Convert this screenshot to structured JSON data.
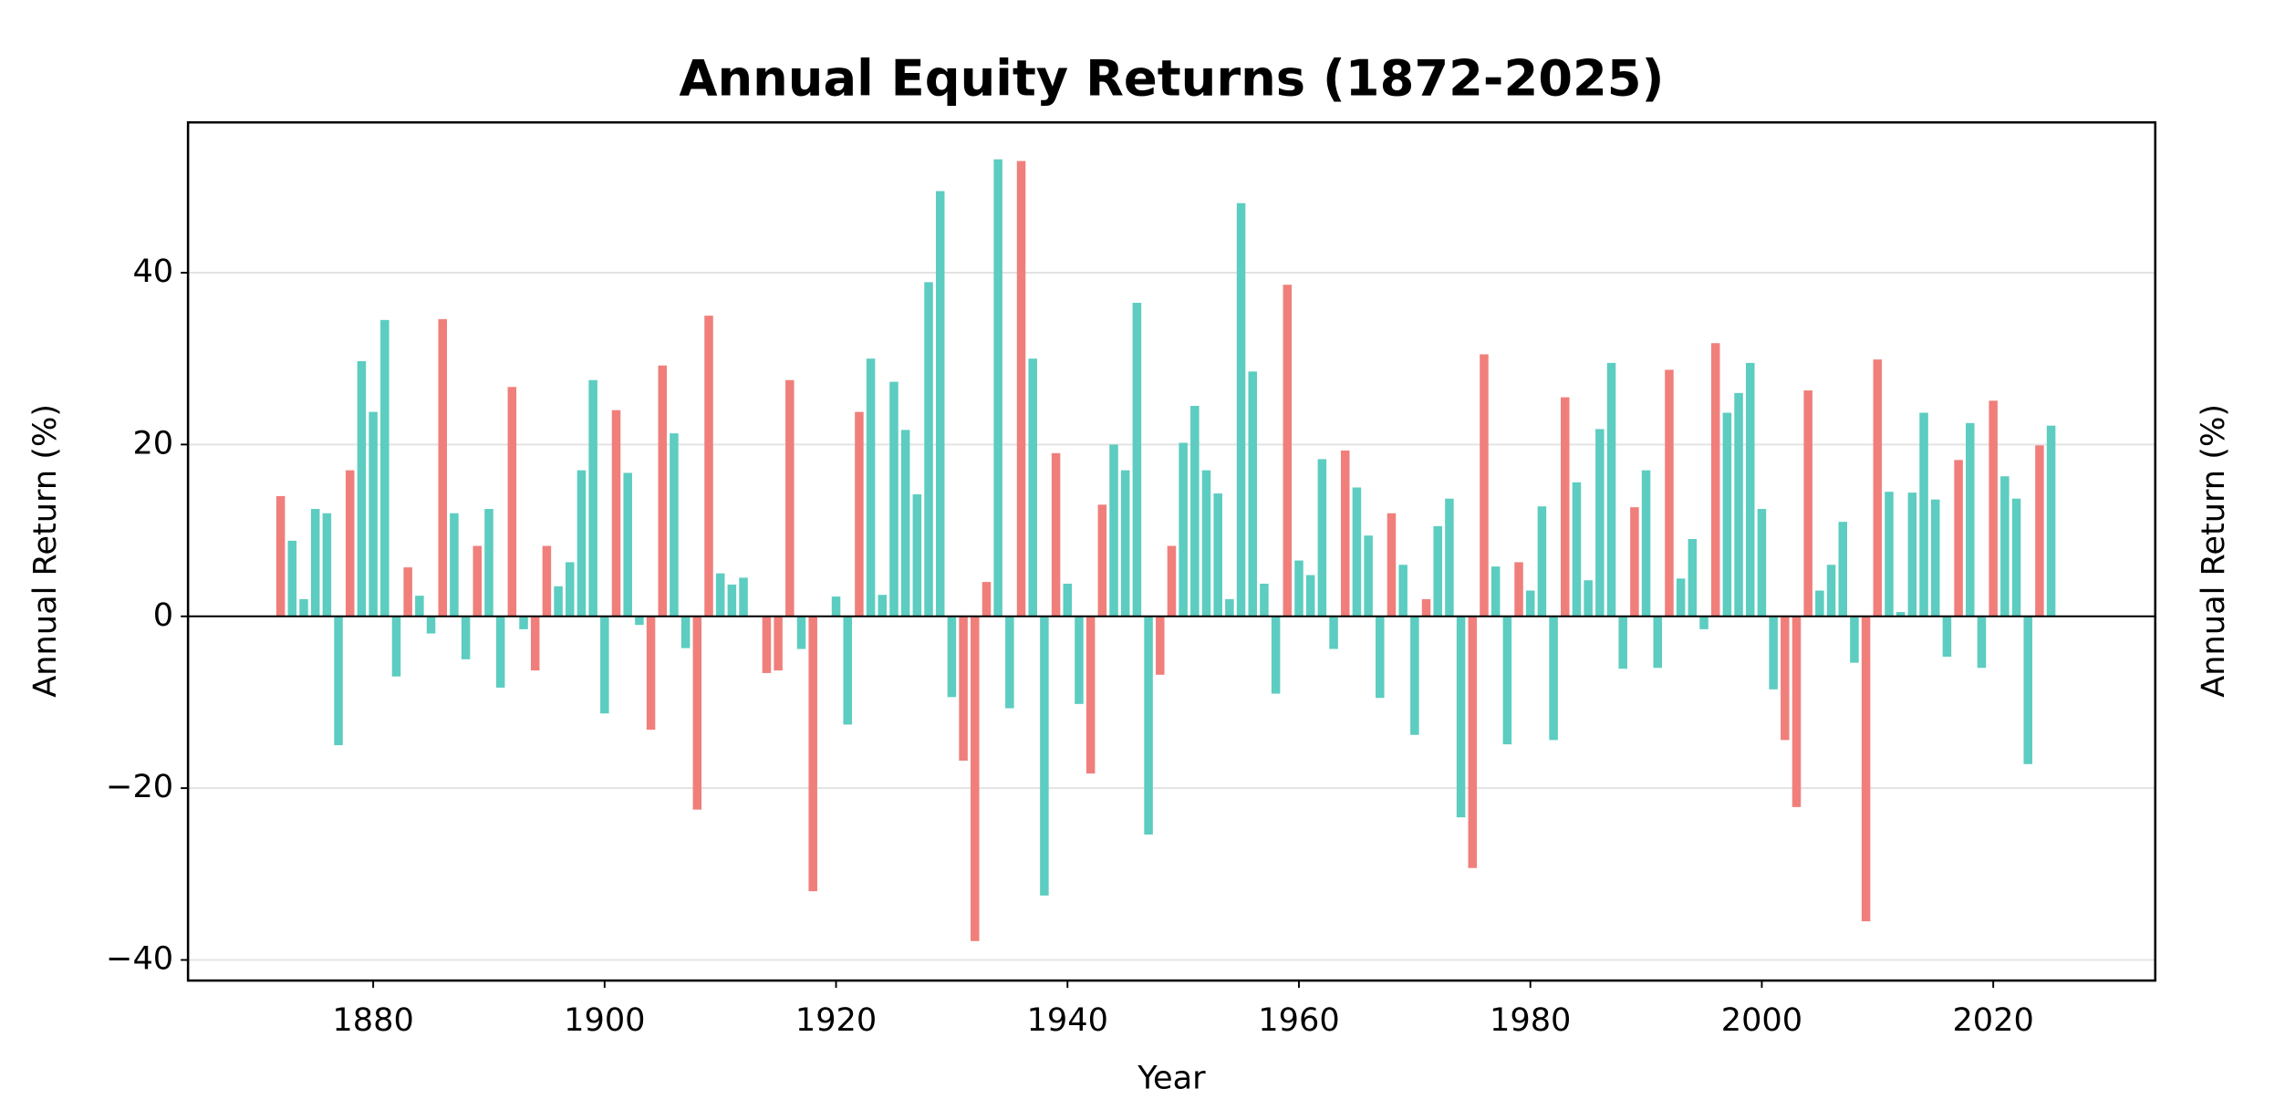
{
  "chart_data": {
    "type": "bar",
    "title": "Annual Equity Returns (1872-2025)",
    "x_label": "Year",
    "y_label": "Annual Return (%)",
    "y2_label": "Annual Return (%)",
    "x": [
      1872,
      1873,
      1874,
      1875,
      1876,
      1877,
      1878,
      1879,
      1880,
      1881,
      1882,
      1883,
      1884,
      1885,
      1886,
      1887,
      1888,
      1889,
      1890,
      1891,
      1892,
      1893,
      1894,
      1895,
      1896,
      1897,
      1898,
      1899,
      1900,
      1901,
      1902,
      1903,
      1904,
      1905,
      1906,
      1907,
      1908,
      1909,
      1910,
      1911,
      1912,
      1913,
      1914,
      1915,
      1916,
      1917,
      1918,
      1919,
      1920,
      1921,
      1922,
      1923,
      1924,
      1925,
      1926,
      1927,
      1928,
      1929,
      1930,
      1931,
      1932,
      1933,
      1934,
      1935,
      1936,
      1937,
      1938,
      1939,
      1940,
      1941,
      1942,
      1943,
      1944,
      1945,
      1946,
      1947,
      1948,
      1949,
      1950,
      1951,
      1952,
      1953,
      1954,
      1955,
      1956,
      1957,
      1958,
      1959,
      1960,
      1961,
      1962,
      1963,
      1964,
      1965,
      1966,
      1967,
      1968,
      1969,
      1970,
      1971,
      1972,
      1973,
      1974,
      1975,
      1976,
      1977,
      1978,
      1979,
      1980,
      1981,
      1982,
      1983,
      1984,
      1985,
      1986,
      1987,
      1988,
      1989,
      1990,
      1991,
      1992,
      1993,
      1994,
      1995,
      1996,
      1997,
      1998,
      1999,
      2000,
      2001,
      2002,
      2003,
      2004,
      2005,
      2006,
      2007,
      2008,
      2009,
      2010,
      2011,
      2012,
      2013,
      2014,
      2015,
      2016,
      2017,
      2018,
      2019,
      2020,
      2021,
      2022,
      2023,
      2024,
      2025
    ],
    "values": [
      14,
      8.8,
      2,
      12.5,
      12,
      -15,
      17,
      29.7,
      23.8,
      34.5,
      -7,
      5.7,
      2.4,
      -2,
      34.6,
      12,
      -5,
      8.2,
      12.5,
      -8.3,
      26.7,
      -1.5,
      -6.3,
      8.2,
      3.5,
      6.3,
      17,
      27.5,
      -11.3,
      24,
      16.7,
      -1,
      -13.2,
      29.2,
      21.3,
      -3.7,
      -22.5,
      35,
      5,
      3.7,
      4.5,
      null,
      -6.6,
      -6.3,
      27.5,
      -3.8,
      -32,
      null,
      2.3,
      -12.6,
      23.8,
      30,
      2.5,
      27.3,
      21.7,
      14.2,
      38.9,
      49.5,
      -9.4,
      -16.8,
      -37.8,
      4,
      53.2,
      -10.7,
      53,
      30,
      -32.5,
      19,
      3.8,
      -10.2,
      -18.3,
      13,
      20,
      17,
      36.5,
      -25.4,
      -6.8,
      8.2,
      20.2,
      24.5,
      17,
      14.3,
      2,
      48.1,
      28.5,
      3.8,
      -9,
      38.6,
      6.5,
      4.8,
      18.3,
      -3.8,
      19.3,
      15,
      9.4,
      -9.5,
      12,
      6,
      -13.8,
      2,
      10.5,
      13.7,
      -23.4,
      -29.3,
      30.5,
      5.8,
      -14.9,
      6.3,
      3,
      12.8,
      -14.4,
      25.5,
      15.6,
      4.2,
      21.8,
      29.5,
      -6.1,
      12.7,
      17,
      -6,
      28.7,
      4.4,
      9,
      -1.5,
      31.8,
      23.7,
      26,
      29.5,
      12.5,
      -8.5,
      -14.4,
      -22.2,
      26.3,
      3,
      6,
      11,
      -5.4,
      -35.5,
      29.9,
      14.5,
      0.5,
      14.4,
      23.7,
      13.6,
      -4.7,
      18.2,
      22.5,
      -6,
      25.1,
      16.3,
      13.7,
      -17.2,
      19.9,
      22.2
    ],
    "palette": [
      "#5ccdc0",
      "#f07f7b"
    ],
    "color_index": [
      1,
      0,
      0,
      0,
      0,
      0,
      1,
      0,
      0,
      0,
      0,
      1,
      0,
      0,
      1,
      0,
      0,
      1,
      0,
      0,
      1,
      0,
      1,
      1,
      0,
      0,
      0,
      0,
      0,
      1,
      0,
      0,
      1,
      1,
      0,
      0,
      1,
      1,
      0,
      0,
      0,
      null,
      1,
      1,
      1,
      0,
      1,
      null,
      0,
      0,
      1,
      0,
      0,
      0,
      0,
      0,
      0,
      0,
      0,
      1,
      1,
      1,
      0,
      0,
      1,
      0,
      0,
      1,
      0,
      0,
      1,
      1,
      0,
      0,
      0,
      0,
      1,
      1,
      0,
      0,
      0,
      0,
      0,
      0,
      0,
      0,
      0,
      1,
      0,
      0,
      0,
      0,
      1,
      0,
      0,
      0,
      1,
      0,
      0,
      1,
      0,
      0,
      0,
      1,
      1,
      0,
      0,
      1,
      0,
      0,
      0,
      1,
      0,
      0,
      0,
      0,
      0,
      1,
      0,
      0,
      1,
      0,
      0,
      0,
      1,
      0,
      0,
      0,
      0,
      0,
      1,
      1,
      1,
      0,
      0,
      0,
      0,
      1,
      1,
      0,
      0,
      0,
      0,
      0,
      0,
      1,
      0,
      0,
      1,
      0,
      0,
      0,
      1,
      0
    ],
    "xlim": [
      1864,
      2034
    ],
    "ylim": [
      -42.4,
      57.5
    ],
    "xticks": [
      1880,
      1900,
      1920,
      1940,
      1960,
      1980,
      2000,
      2020
    ],
    "yticks": [
      {
        "value": -40,
        "label": "−40"
      },
      {
        "value": -20,
        "label": "−20"
      },
      0,
      20,
      40
    ],
    "grid": true
  }
}
